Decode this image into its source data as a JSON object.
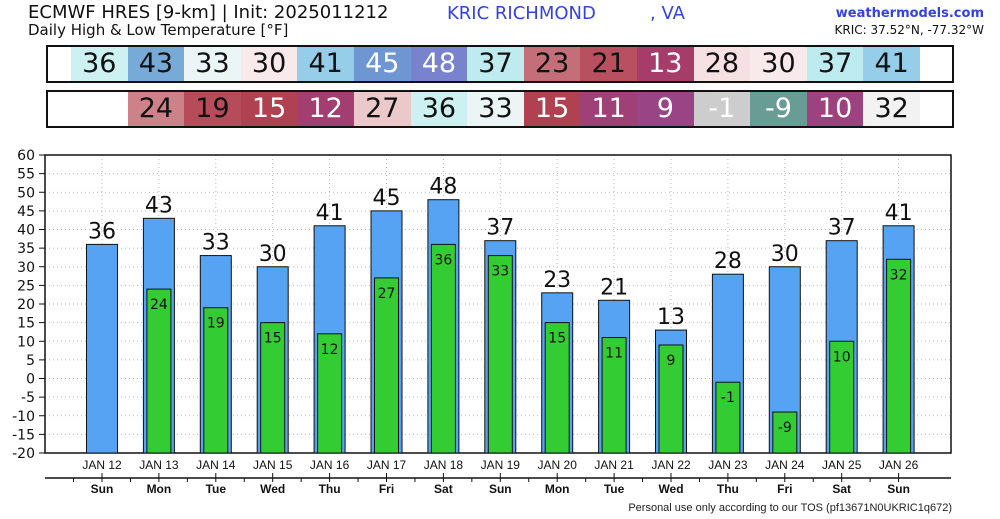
{
  "header": {
    "title": "ECMWF HRES [9-km] | Init: 2025011212",
    "subtitle": "Daily High & Low Temperature [°F]",
    "station": "KRIC RICHMOND",
    "state": ", VA",
    "brand": "weathermodels.com",
    "coords": "KRIC: 37.52°N, -77.32°W"
  },
  "footer": "Personal use only according to our TOS (pf13671N0UKRIC1q672)",
  "colors": {
    "high_bar": "#55a3f2",
    "low_bar": "#33cc33"
  },
  "chart_data": {
    "type": "bar",
    "categories": [
      "JAN 12",
      "JAN 13",
      "JAN 14",
      "JAN 15",
      "JAN 16",
      "JAN 17",
      "JAN 18",
      "JAN 19",
      "JAN 20",
      "JAN 21",
      "JAN 22",
      "JAN 23",
      "JAN 24",
      "JAN 25",
      "JAN 26"
    ],
    "days": [
      "Sun",
      "Mon",
      "Tue",
      "Wed",
      "Thu",
      "Fri",
      "Sat",
      "Sun",
      "Mon",
      "Tue",
      "Wed",
      "Thu",
      "Fri",
      "Sat",
      "Sun"
    ],
    "series": [
      {
        "values": [
          36,
          43,
          33,
          30,
          41,
          45,
          48,
          37,
          23,
          21,
          13,
          28,
          30,
          37,
          41
        ]
      },
      {
        "values": [
          null,
          24,
          19,
          15,
          12,
          27,
          36,
          33,
          15,
          11,
          9,
          -1,
          -9,
          10,
          32
        ]
      }
    ],
    "ylim": [
      -20,
      60
    ],
    "yticks": [
      60,
      55,
      50,
      45,
      40,
      35,
      30,
      25,
      20,
      15,
      10,
      5,
      0,
      -5,
      -10,
      -15,
      -20
    ],
    "grid": true
  },
  "strips": {
    "high_labels": [
      "36",
      "43",
      "33",
      "30",
      "41",
      "45",
      "48",
      "37",
      "23",
      "21",
      "13",
      "28",
      "30",
      "37",
      "41"
    ],
    "low_labels": [
      "",
      "24",
      "19",
      "15",
      "12",
      "27",
      "36",
      "33",
      "15",
      "11",
      "9",
      "-1",
      "-9",
      "10",
      "32"
    ]
  }
}
